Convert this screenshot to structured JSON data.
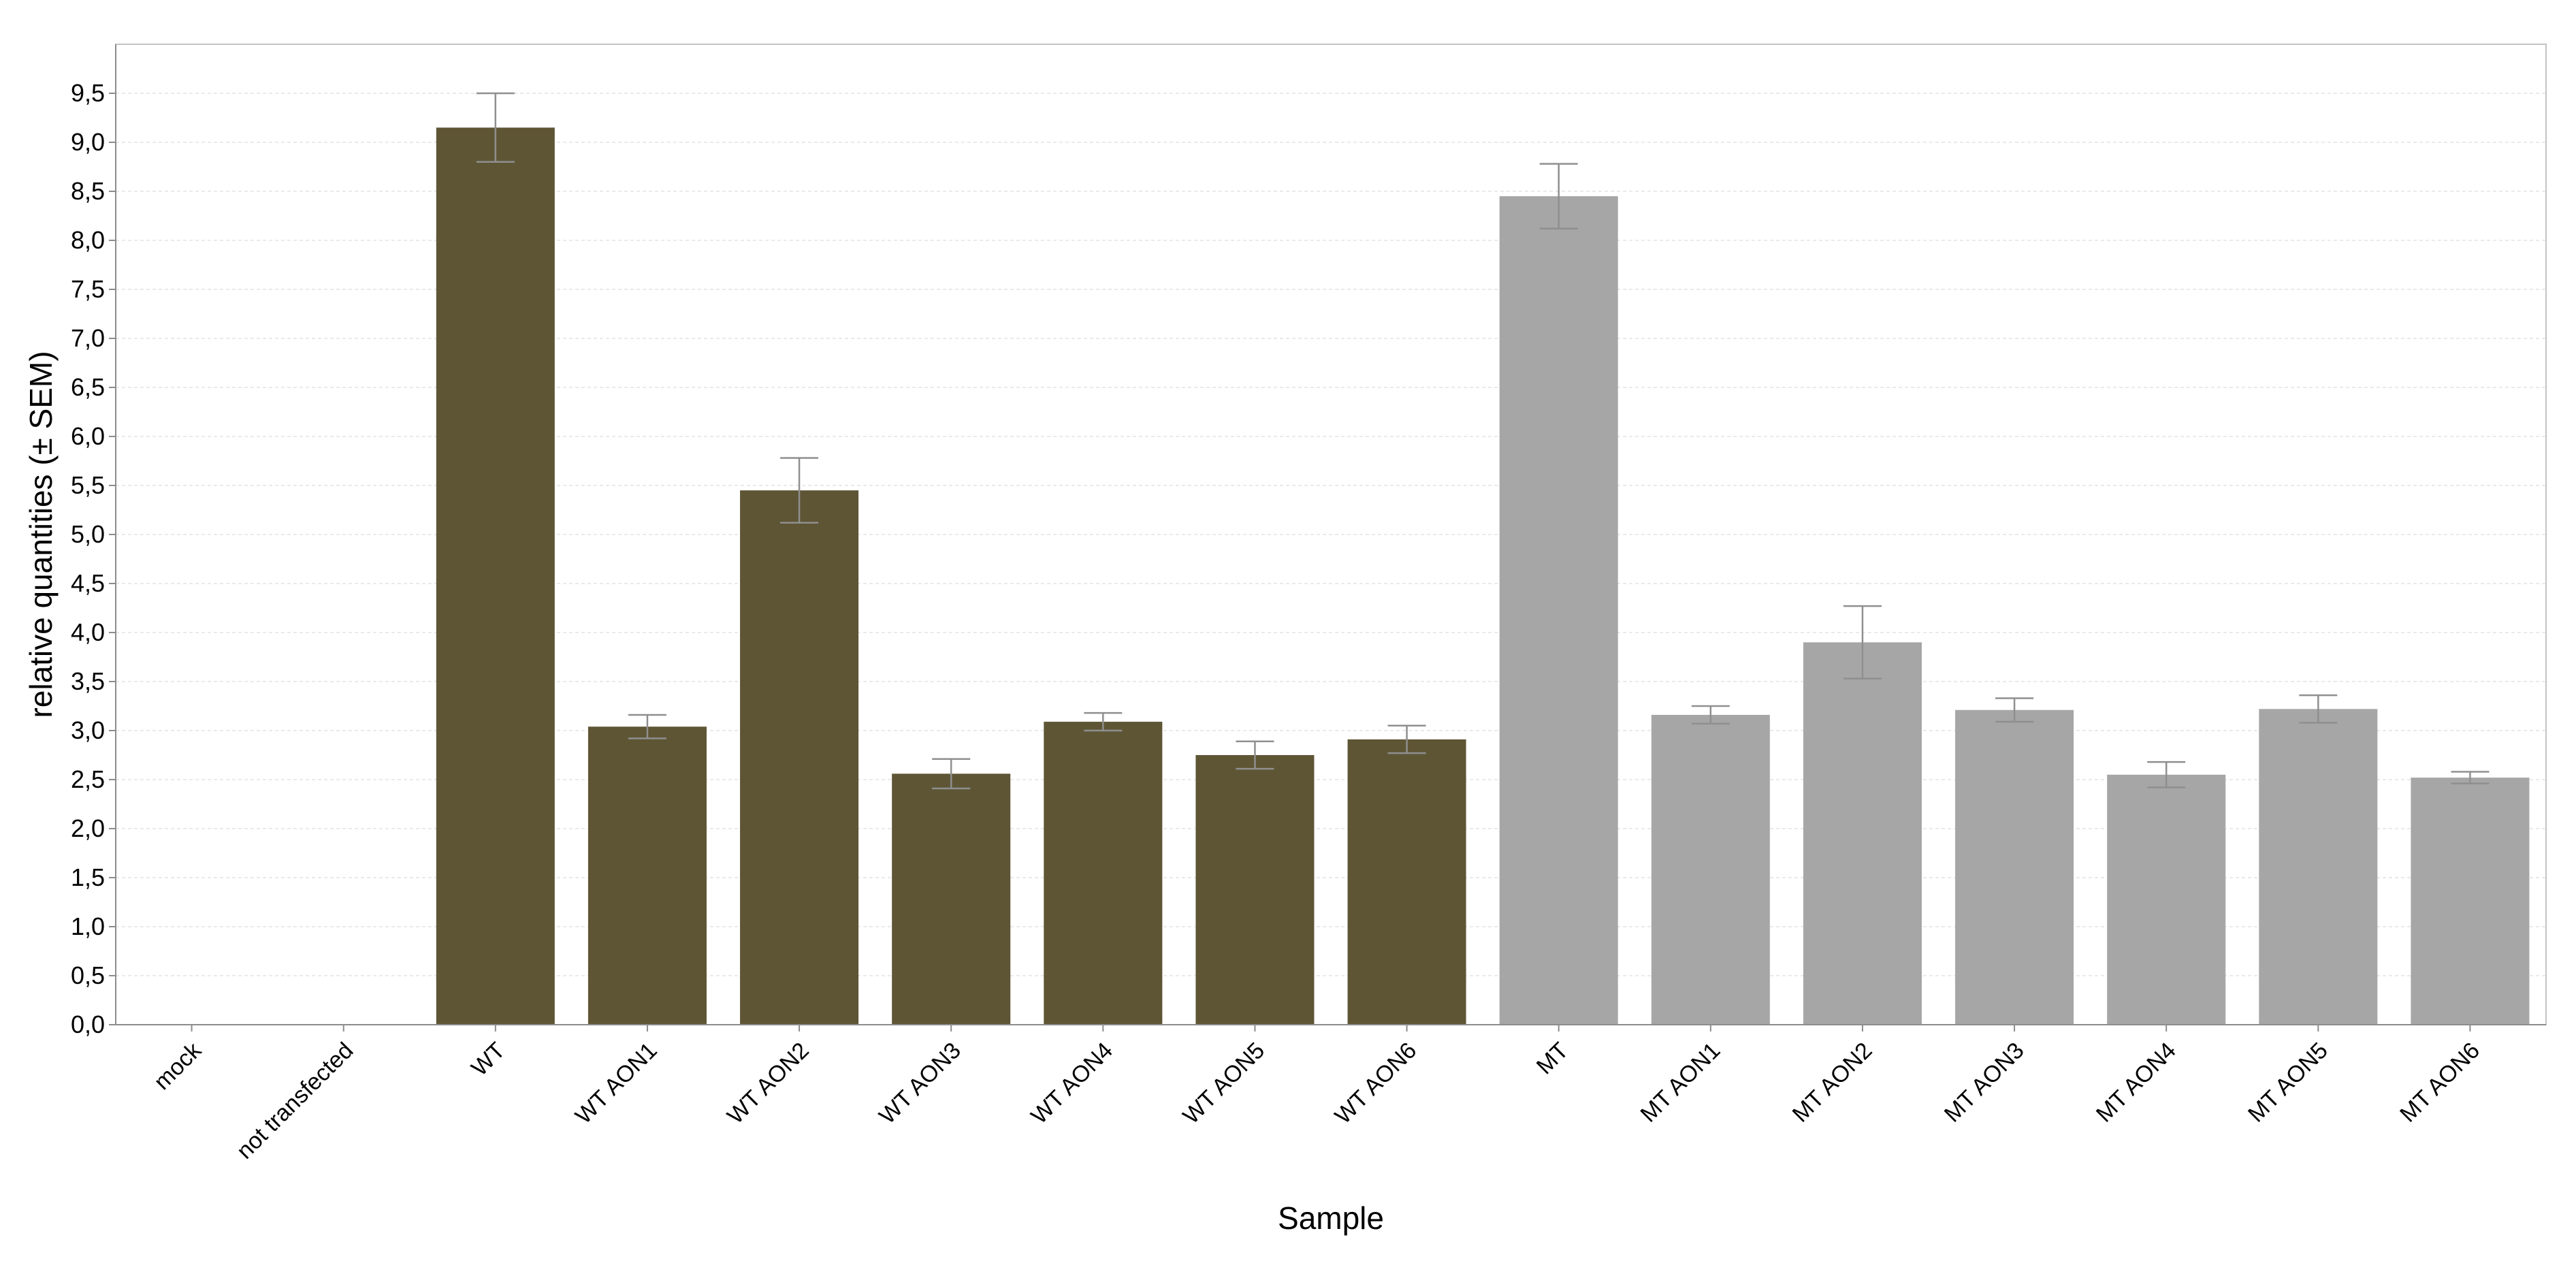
{
  "chart_data": {
    "type": "bar",
    "title": "",
    "xlabel": "Sample",
    "ylabel": "relative quantities (± SEM)",
    "ylim": [
      0,
      10
    ],
    "y_ticks": [
      0,
      0.5,
      1,
      1.5,
      2,
      2.5,
      3,
      3.5,
      4,
      4.5,
      5,
      5.5,
      6,
      6.5,
      7,
      7.5,
      8,
      8.5,
      9,
      9.5
    ],
    "y_tick_labels": [
      "0,0",
      "0,5",
      "1,0",
      "1,5",
      "2,0",
      "2,5",
      "3,0",
      "3,5",
      "4,0",
      "4,5",
      "5,0",
      "5,5",
      "6,0",
      "6,5",
      "7,0",
      "7,5",
      "8,0",
      "8,5",
      "9,0",
      "9,5"
    ],
    "grid": true,
    "legend": "none",
    "categories": [
      "mock",
      "not transfected",
      "WT",
      "WT AON1",
      "WT AON2",
      "WT AON3",
      "WT AON4",
      "WT AON5",
      "WT AON6",
      "MT",
      "MT AON1",
      "MT AON2",
      "MT AON3",
      "MT AON4",
      "MT AON5",
      "MT AON6"
    ],
    "values": [
      0,
      0,
      9.15,
      3.04,
      5.45,
      2.56,
      3.09,
      2.75,
      2.91,
      8.45,
      3.16,
      3.9,
      3.21,
      2.55,
      3.22,
      2.52
    ],
    "errors": [
      0,
      0,
      0.35,
      0.12,
      0.33,
      0.15,
      0.09,
      0.14,
      0.14,
      0.33,
      0.09,
      0.37,
      0.12,
      0.13,
      0.14,
      0.06
    ],
    "bar_colors": [
      "#5e5535",
      "#5e5535",
      "#5e5535",
      "#5e5535",
      "#5e5535",
      "#5e5535",
      "#5e5535",
      "#5e5535",
      "#5e5535",
      "#a6a6a6",
      "#a6a6a6",
      "#a6a6a6",
      "#a6a6a6",
      "#a6a6a6",
      "#a6a6a6",
      "#a6a6a6"
    ],
    "error_bar_color": "#8f8f8f"
  }
}
